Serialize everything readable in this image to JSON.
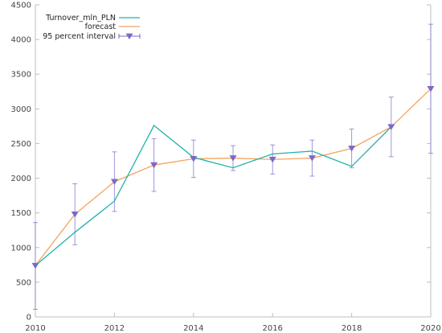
{
  "chart_data": {
    "type": "line",
    "title": "",
    "xlabel": "",
    "ylabel": "",
    "xlim": [
      2010,
      2020
    ],
    "ylim": [
      0,
      4500
    ],
    "x_ticks": [
      2010,
      2012,
      2014,
      2016,
      2018,
      2020
    ],
    "y_ticks": [
      0,
      500,
      1000,
      1500,
      2000,
      2500,
      3000,
      3500,
      4000,
      4500
    ],
    "grid": false,
    "legend_position": "top-left",
    "series": [
      {
        "name": "Turnover_mln_PLN",
        "color": "#20b2aa",
        "x": [
          2010,
          2011,
          2012,
          2013,
          2014,
          2015,
          2016,
          2017,
          2018,
          2019
        ],
        "y": [
          740,
          1220,
          1670,
          2760,
          2300,
          2150,
          2350,
          2390,
          2170,
          2740
        ]
      },
      {
        "name": "forecast",
        "color": "#f4a460",
        "x": [
          2010,
          2011,
          2012,
          2013,
          2014,
          2015,
          2016,
          2017,
          2018,
          2019,
          2020
        ],
        "y": [
          740,
          1480,
          1950,
          2190,
          2280,
          2290,
          2270,
          2290,
          2430,
          2740,
          3290
        ]
      },
      {
        "name": "95 percent interval",
        "color": "#7b68c8",
        "x": [
          2010,
          2011,
          2012,
          2013,
          2014,
          2015,
          2016,
          2017,
          2018,
          2019,
          2020
        ],
        "y": [
          740,
          1480,
          1950,
          2190,
          2280,
          2290,
          2270,
          2290,
          2430,
          2740,
          3290
        ],
        "low": [
          110,
          1040,
          1520,
          1810,
          2010,
          2110,
          2060,
          2030,
          2150,
          2310,
          2360
        ],
        "high": [
          1360,
          1920,
          2380,
          2570,
          2550,
          2470,
          2480,
          2550,
          2710,
          3170,
          4220
        ]
      }
    ]
  }
}
